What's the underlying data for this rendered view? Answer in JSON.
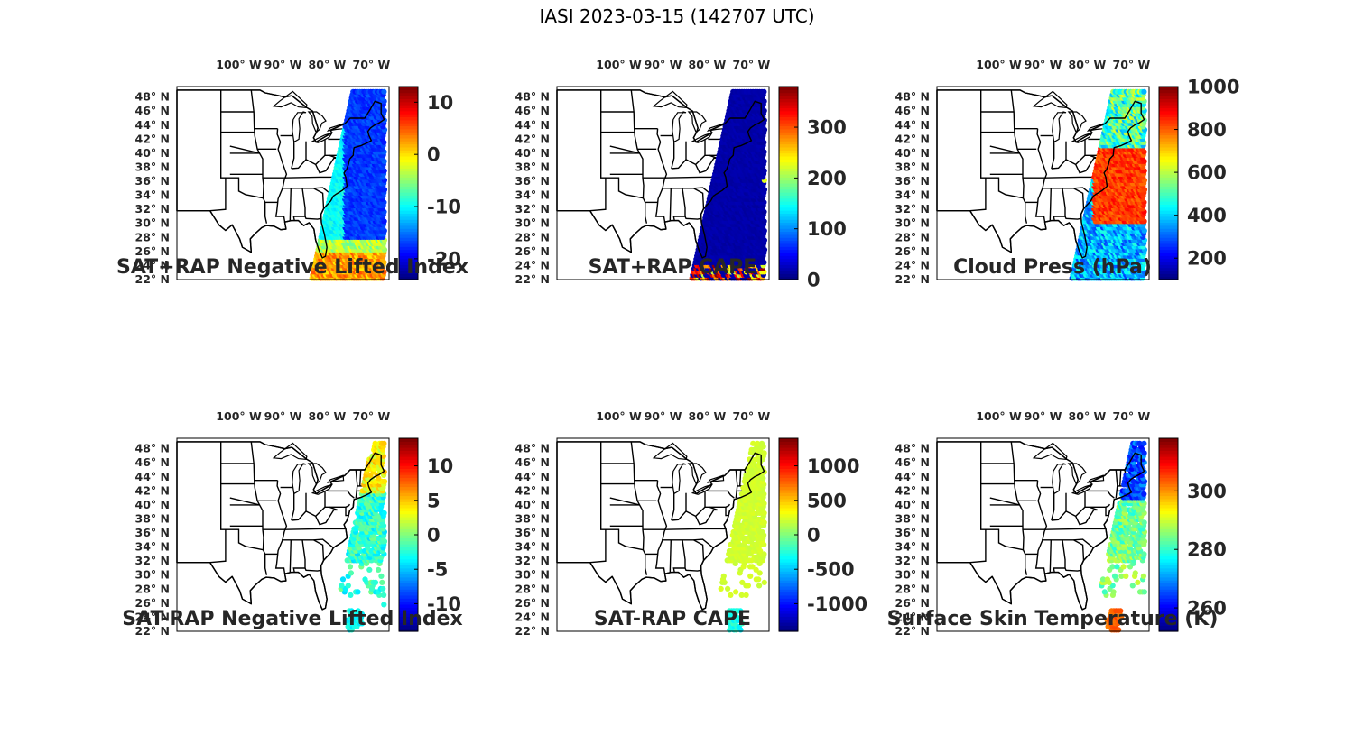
{
  "figure": {
    "title": "IASI 2023-03-15 (142707 UTC)"
  },
  "axes": {
    "lon_labels": [
      "100",
      "90",
      "80",
      "70"
    ],
    "lon_hemisphere": "W",
    "lat_labels": [
      "48",
      "46",
      "44",
      "42",
      "40",
      "38",
      "36",
      "34",
      "32",
      "30",
      "28",
      "26",
      "24",
      "22"
    ],
    "lat_hemisphere": "N",
    "degree_symbol": "°"
  },
  "colormap": "jet",
  "chart_data": [
    {
      "type": "heatmap",
      "title": "SAT+RAP Negative Lifted Index",
      "colorbar": {
        "ticks": [
          "10",
          "0",
          "-10",
          "-20"
        ],
        "range": [
          -24,
          13
        ]
      },
      "swath": {
        "lon_range": [
          -81,
          -67
        ],
        "lat_range": [
          22,
          49
        ]
      },
      "pattern": "mostly blue swath over ocean, cyan/green near coast, orange-red band in the southern end"
    },
    {
      "type": "heatmap",
      "title": "SAT+RAP CAPE",
      "colorbar": {
        "ticks": [
          "300",
          "200",
          "100",
          "0"
        ],
        "range": [
          0,
          380
        ]
      },
      "swath": {
        "lon_range": [
          -81,
          -67
        ],
        "lat_range": [
          22,
          49
        ]
      },
      "pattern": "uniformly dark blue near 0, red/orange/yellow speckles at the southern edge"
    },
    {
      "type": "heatmap",
      "title": "Cloud Press (hPa)",
      "colorbar": {
        "ticks": [
          "1000",
          "800",
          "600",
          "400",
          "200"
        ],
        "range": [
          100,
          1000
        ]
      },
      "swath": {
        "lon_range": [
          -81,
          -67
        ],
        "lat_range": [
          22,
          49
        ]
      },
      "pattern": "orange (high pressure) over the ocean, blue/cyan in the south and along the coast"
    },
    {
      "type": "heatmap",
      "title": "SAT-RAP Negative Lifted Index",
      "colorbar": {
        "ticks": [
          "10",
          "5",
          "0",
          "-5",
          "-10"
        ],
        "range": [
          -14,
          14
        ]
      },
      "swath": {
        "lon_range": [
          -79,
          -67
        ],
        "lat_range": [
          22,
          49
        ]
      },
      "pattern": "sparse swath, yellow-green in north, cyan along coast, blue points scattered south"
    },
    {
      "type": "heatmap",
      "title": "SAT-RAP CAPE",
      "colorbar": {
        "ticks": [
          "1000",
          "500",
          "0",
          "-500",
          "-1000"
        ],
        "range": [
          -1400,
          1400
        ]
      },
      "swath": {
        "lon_range": [
          -79,
          -67
        ],
        "lat_range": [
          22,
          49
        ]
      },
      "pattern": "light green near 0 across the whole swath, cyan cluster at the southern tip"
    },
    {
      "type": "heatmap",
      "title": "Surface Skin Temperature (K)",
      "colorbar": {
        "ticks": [
          "300",
          "280",
          "260"
        ],
        "range": [
          252,
          318
        ]
      },
      "swath": {
        "lon_range": [
          -79,
          -67
        ],
        "lat_range": [
          22,
          49
        ]
      },
      "pattern": "blue (cold) in the north, cyan/green in the middle, yellow-orange in the far south"
    }
  ]
}
